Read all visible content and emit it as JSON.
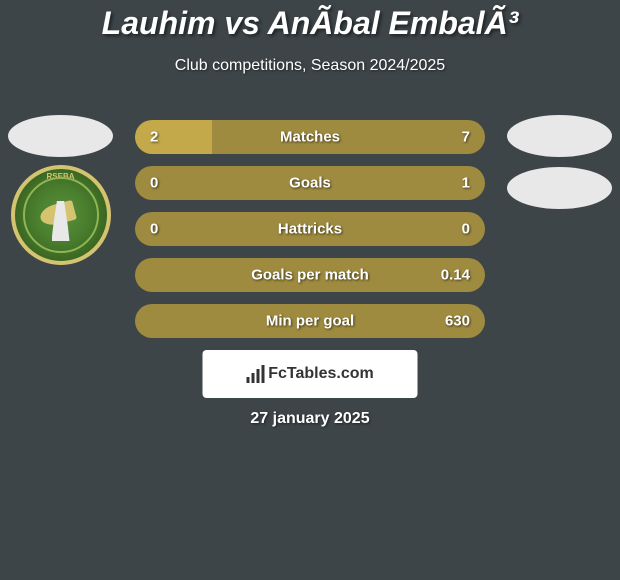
{
  "header": {
    "title": "Lauhim vs AnÃ­bal EmbalÃ³",
    "subtitle": "Club competitions, Season 2024/2025"
  },
  "club_badge": {
    "text": "RSEBA"
  },
  "stats": [
    {
      "label": "Matches",
      "left_value": "2",
      "right_value": "7",
      "left_fill_pct": 22,
      "right_fill_pct": 0
    },
    {
      "label": "Goals",
      "left_value": "0",
      "right_value": "1",
      "left_fill_pct": 0,
      "right_fill_pct": 0
    },
    {
      "label": "Hattricks",
      "left_value": "0",
      "right_value": "0",
      "left_fill_pct": 0,
      "right_fill_pct": 0
    },
    {
      "label": "Goals per match",
      "left_value": "",
      "right_value": "0.14",
      "left_fill_pct": 0,
      "right_fill_pct": 0
    },
    {
      "label": "Min per goal",
      "left_value": "",
      "right_value": "630",
      "left_fill_pct": 0,
      "right_fill_pct": 0
    }
  ],
  "colors": {
    "background": "#3d4548",
    "bar_base": "#9e8b3f",
    "bar_fill": "#c4a94a",
    "text_white": "#ffffff",
    "footer_bg": "#ffffff",
    "footer_text": "#333333",
    "badge_green": "#4a7f2e",
    "badge_gold": "#d4c470"
  },
  "footer": {
    "brand": "FcTables.com",
    "date": "27 january 2025"
  }
}
